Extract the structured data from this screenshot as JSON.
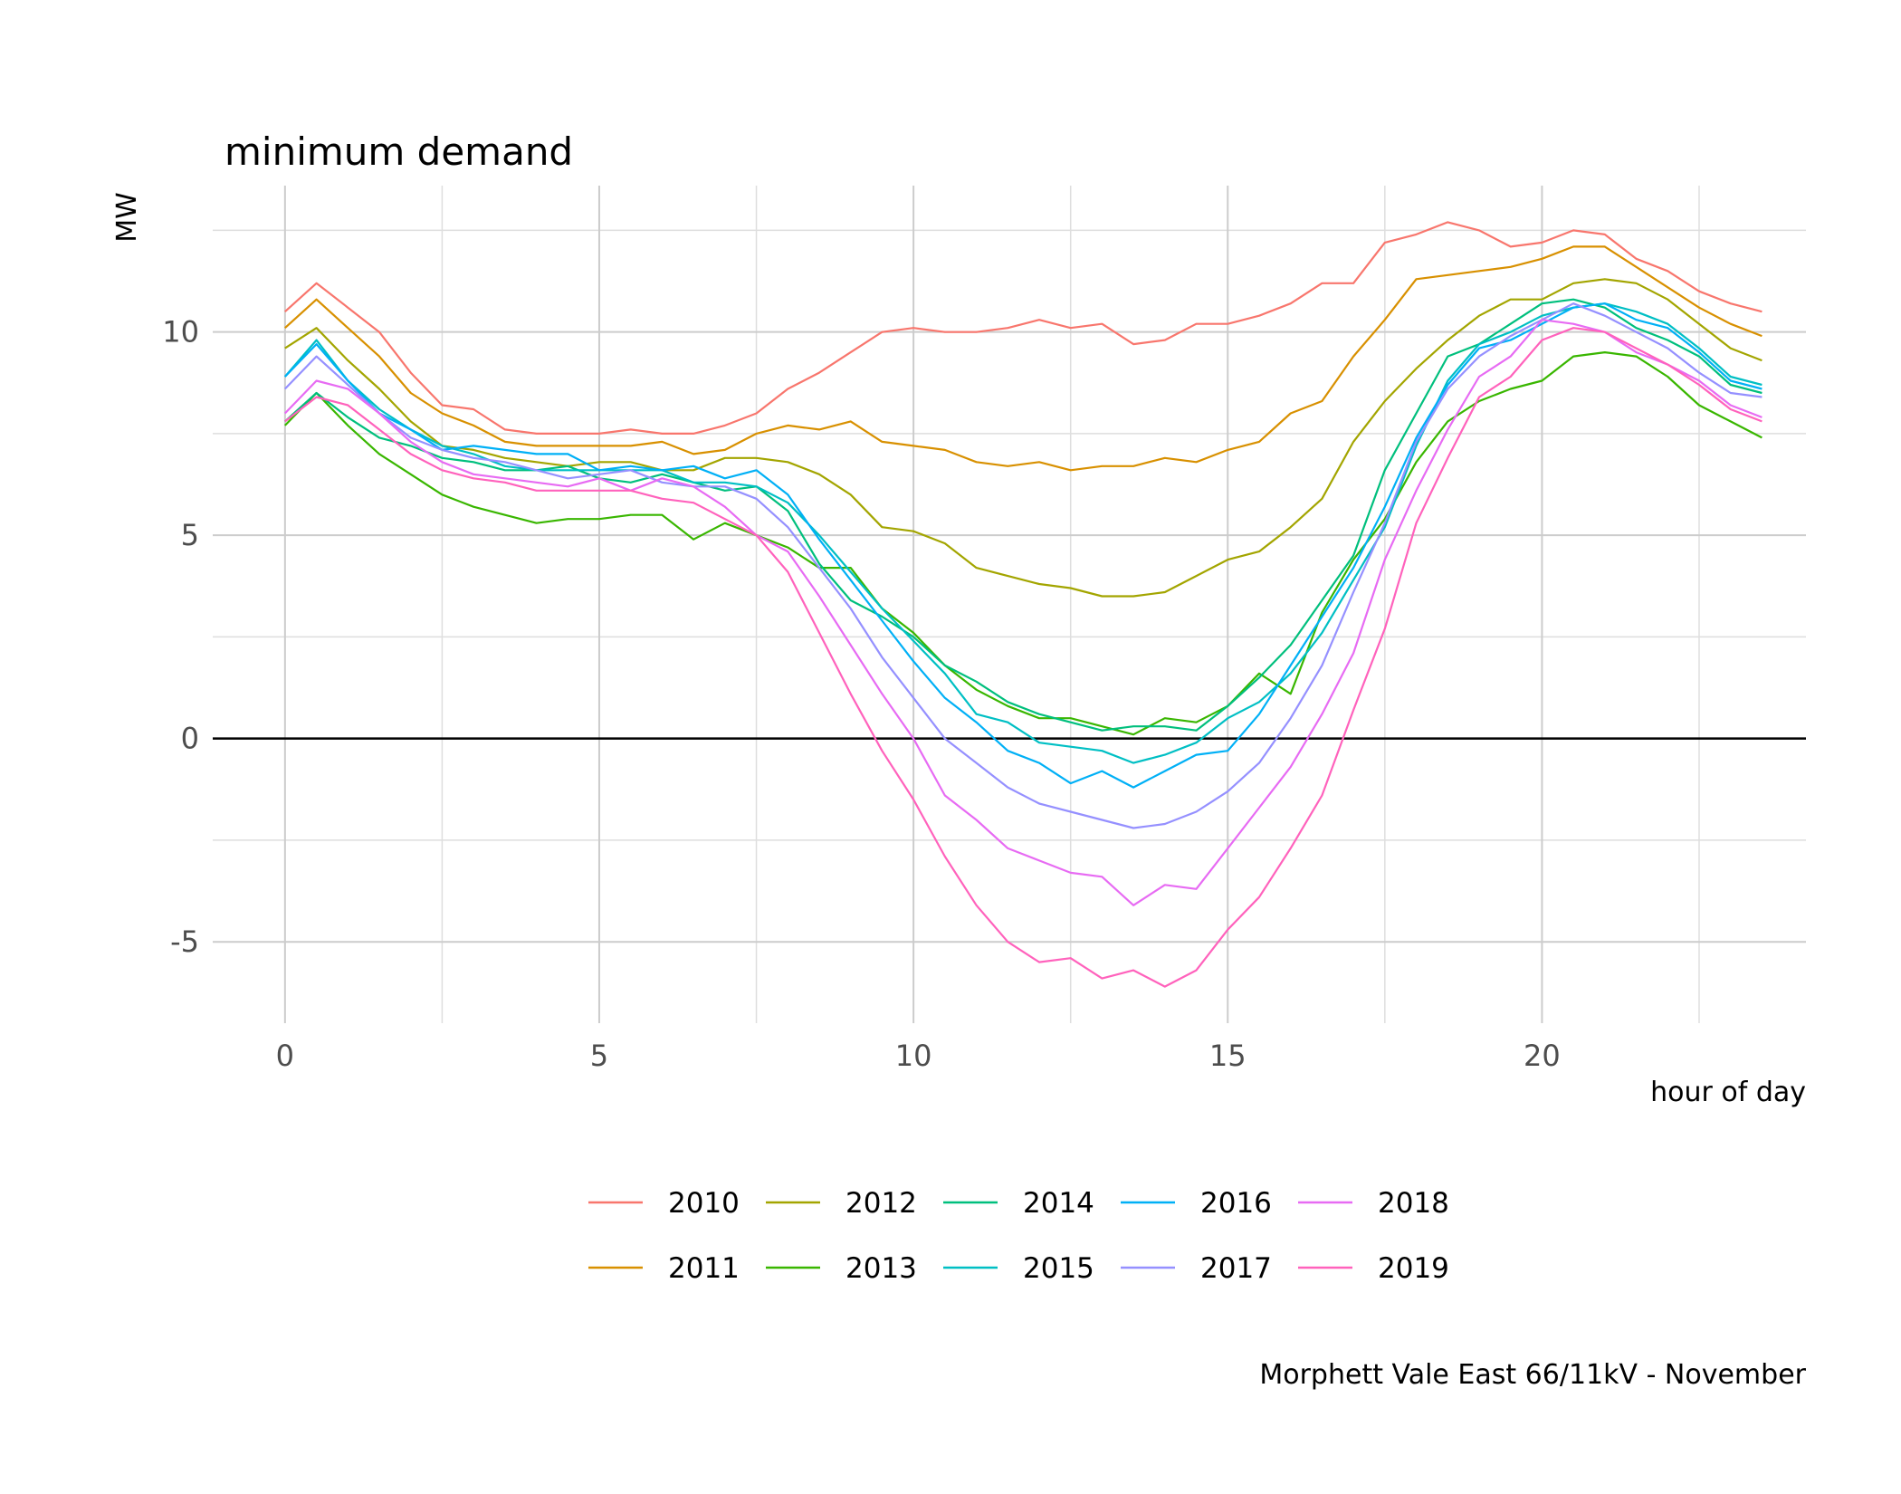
{
  "chart_data": {
    "type": "line",
    "title": "minimum demand",
    "xlabel": "hour of day",
    "ylabel": "MW",
    "caption": "Morphett Vale East 66/11kV - November",
    "xlim": [
      -1.15,
      24.2
    ],
    "ylim": [
      -7.0,
      13.6
    ],
    "xticks": [
      0,
      5,
      10,
      15,
      20
    ],
    "yticks": [
      -5,
      0,
      5,
      10
    ],
    "grid": true,
    "zero_line": true,
    "legend_position": "bottom",
    "x": [
      0,
      0.5,
      1,
      1.5,
      2,
      2.5,
      3,
      3.5,
      4,
      4.5,
      5,
      5.5,
      6,
      6.5,
      7,
      7.5,
      8,
      8.5,
      9,
      9.5,
      10,
      10.5,
      11,
      11.5,
      12,
      12.5,
      13,
      13.5,
      14,
      14.5,
      15,
      15.5,
      16,
      16.5,
      17,
      17.5,
      18,
      18.5,
      19,
      19.5,
      20,
      20.5,
      21,
      21.5,
      22,
      22.5,
      23,
      23.5
    ],
    "series": [
      {
        "name": "2010",
        "color": "#F8766D",
        "values": [
          10.5,
          11.2,
          10.6,
          10.0,
          9.0,
          8.2,
          8.1,
          7.6,
          7.5,
          7.5,
          7.5,
          7.6,
          7.5,
          7.5,
          7.7,
          8.0,
          8.6,
          9.0,
          9.5,
          10.0,
          10.1,
          10.0,
          10.0,
          10.1,
          10.3,
          10.1,
          10.2,
          9.7,
          9.8,
          10.2,
          10.2,
          10.4,
          10.7,
          11.2,
          11.2,
          12.2,
          12.4,
          12.7,
          12.5,
          12.1,
          12.2,
          12.5,
          12.4,
          11.8,
          11.5,
          11.0,
          10.7,
          10.5
        ]
      },
      {
        "name": "2011",
        "color": "#D89000",
        "values": [
          10.1,
          10.8,
          10.1,
          9.4,
          8.5,
          8.0,
          7.7,
          7.3,
          7.2,
          7.2,
          7.2,
          7.2,
          7.3,
          7.0,
          7.1,
          7.5,
          7.7,
          7.6,
          7.8,
          7.3,
          7.2,
          7.1,
          6.8,
          6.7,
          6.8,
          6.6,
          6.7,
          6.7,
          6.9,
          6.8,
          7.1,
          7.3,
          8.0,
          8.3,
          9.4,
          10.3,
          11.3,
          11.4,
          11.5,
          11.6,
          11.8,
          12.1,
          12.1,
          11.6,
          11.1,
          10.6,
          10.2,
          9.9
        ]
      },
      {
        "name": "2012",
        "color": "#A3A500",
        "values": [
          9.6,
          10.1,
          9.3,
          8.6,
          7.8,
          7.2,
          7.1,
          6.9,
          6.8,
          6.7,
          6.8,
          6.8,
          6.6,
          6.6,
          6.9,
          6.9,
          6.8,
          6.5,
          6.0,
          5.2,
          5.1,
          4.8,
          4.2,
          4.0,
          3.8,
          3.7,
          3.5,
          3.5,
          3.6,
          4.0,
          4.4,
          4.6,
          5.2,
          5.9,
          7.3,
          8.3,
          9.1,
          9.8,
          10.4,
          10.8,
          10.8,
          11.2,
          11.3,
          11.2,
          10.8,
          10.2,
          9.6,
          9.3
        ]
      },
      {
        "name": "2013",
        "color": "#39B600",
        "values": [
          7.7,
          8.5,
          7.7,
          7.0,
          6.5,
          6.0,
          5.7,
          5.5,
          5.3,
          5.4,
          5.4,
          5.5,
          5.5,
          4.9,
          5.3,
          5.0,
          4.7,
          4.2,
          4.2,
          3.2,
          2.6,
          1.8,
          1.2,
          0.8,
          0.5,
          0.5,
          0.3,
          0.1,
          0.5,
          0.4,
          0.8,
          1.6,
          1.1,
          3.1,
          4.4,
          5.4,
          6.8,
          7.8,
          8.3,
          8.6,
          8.8,
          9.4,
          9.5,
          9.4,
          8.9,
          8.2,
          7.8,
          7.4
        ]
      },
      {
        "name": "2014",
        "color": "#00BF7D",
        "values": [
          7.8,
          8.5,
          7.9,
          7.4,
          7.2,
          6.9,
          6.8,
          6.6,
          6.6,
          6.7,
          6.4,
          6.3,
          6.5,
          6.3,
          6.1,
          6.2,
          5.6,
          4.3,
          3.4,
          3.0,
          2.5,
          1.8,
          1.4,
          0.9,
          0.6,
          0.4,
          0.2,
          0.3,
          0.3,
          0.2,
          0.8,
          1.5,
          2.3,
          3.4,
          4.5,
          6.6,
          8.0,
          9.4,
          9.7,
          10.2,
          10.7,
          10.8,
          10.6,
          10.1,
          9.8,
          9.4,
          8.7,
          8.5
        ]
      },
      {
        "name": "2015",
        "color": "#00BFC4",
        "values": [
          8.9,
          9.8,
          8.8,
          8.1,
          7.6,
          7.2,
          7.0,
          6.7,
          6.6,
          6.6,
          6.6,
          6.6,
          6.6,
          6.3,
          6.3,
          6.2,
          5.8,
          5.0,
          4.1,
          3.2,
          2.4,
          1.6,
          0.6,
          0.4,
          -0.1,
          -0.2,
          -0.3,
          -0.6,
          -0.4,
          -0.1,
          0.5,
          0.9,
          1.6,
          2.6,
          3.9,
          5.2,
          7.2,
          8.8,
          9.7,
          10.0,
          10.4,
          10.6,
          10.7,
          10.5,
          10.2,
          9.6,
          8.9,
          8.7
        ]
      },
      {
        "name": "2016",
        "color": "#00B0F6",
        "values": [
          8.9,
          9.7,
          8.8,
          8.0,
          7.6,
          7.1,
          7.2,
          7.1,
          7.0,
          7.0,
          6.6,
          6.7,
          6.6,
          6.7,
          6.4,
          6.6,
          6.0,
          4.9,
          3.9,
          2.9,
          1.9,
          1.0,
          0.4,
          -0.3,
          -0.6,
          -1.1,
          -0.8,
          -1.2,
          -0.8,
          -0.4,
          -0.3,
          0.6,
          1.8,
          3.0,
          4.2,
          5.7,
          7.4,
          8.7,
          9.6,
          9.8,
          10.2,
          10.6,
          10.7,
          10.3,
          10.1,
          9.5,
          8.8,
          8.6
        ]
      },
      {
        "name": "2017",
        "color": "#9590FF",
        "values": [
          8.6,
          9.4,
          8.7,
          8.0,
          7.4,
          7.1,
          6.9,
          6.8,
          6.6,
          6.4,
          6.5,
          6.6,
          6.3,
          6.2,
          6.2,
          5.9,
          5.2,
          4.2,
          3.2,
          2.0,
          1.0,
          0.0,
          -0.6,
          -1.2,
          -1.6,
          -1.8,
          -2.0,
          -2.2,
          -2.1,
          -1.8,
          -1.3,
          -0.6,
          0.5,
          1.8,
          3.6,
          5.3,
          7.3,
          8.6,
          9.4,
          9.9,
          10.3,
          10.7,
          10.4,
          10.0,
          9.6,
          9.0,
          8.5,
          8.4
        ]
      },
      {
        "name": "2018",
        "color": "#E76BF3",
        "values": [
          8.0,
          8.8,
          8.6,
          8.0,
          7.3,
          6.8,
          6.5,
          6.4,
          6.3,
          6.2,
          6.4,
          6.1,
          6.4,
          6.2,
          5.7,
          5.0,
          4.6,
          3.5,
          2.3,
          1.1,
          0.0,
          -1.4,
          -2.0,
          -2.7,
          -3.0,
          -3.3,
          -3.4,
          -4.1,
          -3.6,
          -3.7,
          -2.7,
          -1.7,
          -0.7,
          0.6,
          2.1,
          4.4,
          6.1,
          7.6,
          8.9,
          9.4,
          10.3,
          10.2,
          10.0,
          9.5,
          9.2,
          8.8,
          8.2,
          7.9
        ]
      },
      {
        "name": "2019",
        "color": "#FF62BC",
        "values": [
          7.8,
          8.4,
          8.2,
          7.6,
          7.0,
          6.6,
          6.4,
          6.3,
          6.1,
          6.1,
          6.1,
          6.1,
          5.9,
          5.8,
          5.4,
          5.0,
          4.1,
          2.6,
          1.1,
          -0.3,
          -1.5,
          -2.9,
          -4.1,
          -5.0,
          -5.5,
          -5.4,
          -5.9,
          -5.7,
          -6.1,
          -5.7,
          -4.7,
          -3.9,
          -2.7,
          -1.4,
          0.7,
          2.7,
          5.3,
          6.9,
          8.4,
          8.9,
          9.8,
          10.1,
          10.0,
          9.6,
          9.2,
          8.7,
          8.1,
          7.8
        ]
      }
    ]
  }
}
